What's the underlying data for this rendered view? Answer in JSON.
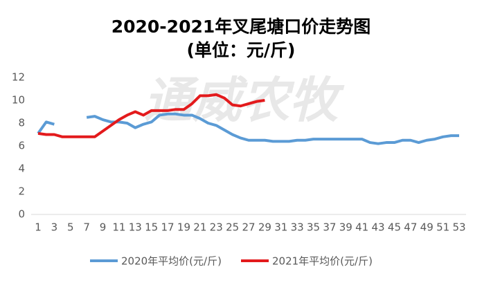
{
  "chart_data": {
    "type": "line",
    "title": "2020-2021年叉尾塘口价走势图",
    "subtitle": "(单位：元/斤)",
    "watermark": "通威农牧",
    "x": [
      1,
      2,
      3,
      4,
      5,
      6,
      7,
      8,
      9,
      10,
      11,
      12,
      13,
      14,
      15,
      16,
      17,
      18,
      19,
      20,
      21,
      22,
      23,
      24,
      25,
      26,
      27,
      28,
      29,
      30,
      31,
      32,
      33,
      34,
      35,
      36,
      37,
      38,
      39,
      40,
      41,
      42,
      43,
      44,
      45,
      46,
      47,
      48,
      49,
      50,
      51,
      52,
      53
    ],
    "xlim": [
      1,
      53
    ],
    "xticks": [
      1,
      3,
      5,
      7,
      9,
      11,
      13,
      15,
      17,
      19,
      21,
      23,
      25,
      27,
      29,
      31,
      33,
      35,
      37,
      39,
      41,
      43,
      45,
      47,
      49,
      51,
      53
    ],
    "ylim": [
      0,
      12
    ],
    "yticks": [
      0,
      2,
      4,
      6,
      8,
      10,
      12
    ],
    "grid": false,
    "legend": "bottom",
    "series": [
      {
        "name": "2020年平均价(元/斤)",
        "color": "#5b9bd5",
        "values": [
          7.1,
          8.1,
          7.9,
          null,
          null,
          null,
          8.5,
          8.6,
          8.3,
          8.1,
          8.1,
          8.0,
          7.6,
          7.9,
          8.1,
          8.7,
          8.8,
          8.8,
          8.7,
          8.7,
          8.4,
          8.0,
          7.8,
          7.4,
          7.0,
          6.7,
          6.5,
          6.5,
          6.5,
          6.4,
          6.4,
          6.4,
          6.5,
          6.5,
          6.6,
          6.6,
          6.6,
          6.6,
          6.6,
          6.6,
          6.6,
          6.3,
          6.2,
          6.3,
          6.3,
          6.5,
          6.5,
          6.3,
          6.5,
          6.6,
          6.8,
          6.9,
          6.9
        ]
      },
      {
        "name": "2021年平均价(元/斤)",
        "color": "#e31a1c",
        "values": [
          7.1,
          7.0,
          7.0,
          6.8,
          6.8,
          6.8,
          6.8,
          6.8,
          7.3,
          7.8,
          8.3,
          8.7,
          9.0,
          8.7,
          9.1,
          9.1,
          9.1,
          9.2,
          9.2,
          9.7,
          10.4,
          10.4,
          10.5,
          10.2,
          9.6,
          9.5,
          9.7,
          9.9,
          10.0,
          null,
          null,
          null,
          null,
          null,
          null,
          null,
          null,
          null,
          null,
          null,
          null,
          null,
          null,
          null,
          null,
          null,
          null,
          null,
          null,
          null,
          null,
          null,
          null
        ]
      }
    ]
  }
}
